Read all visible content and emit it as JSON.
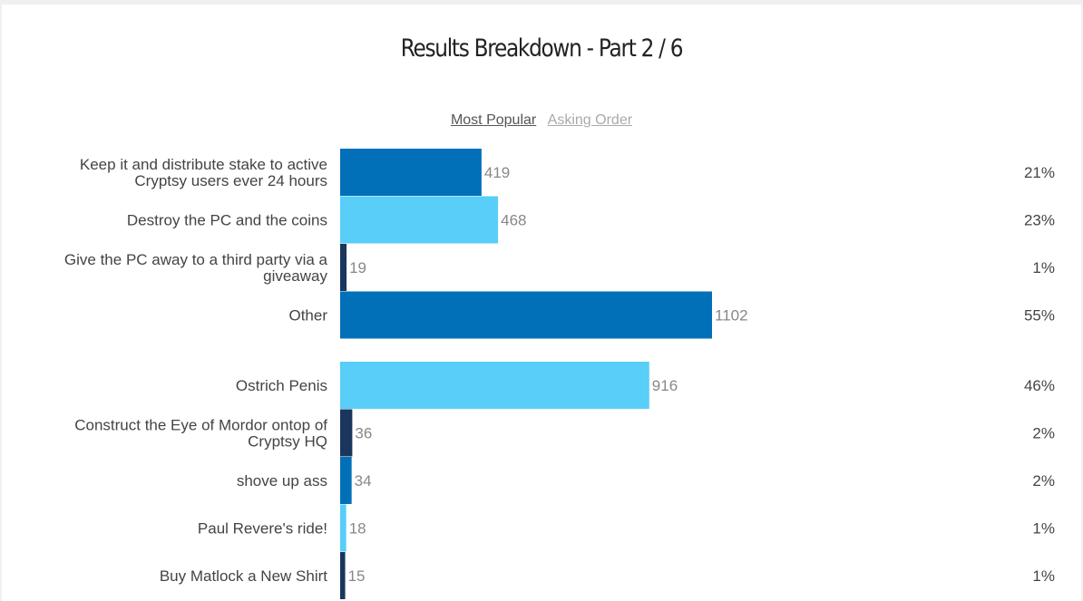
{
  "title": "Results Breakdown - Part 2 / 6",
  "sort": {
    "active": "Most Popular",
    "inactive": "Asking Order"
  },
  "colors": {
    "dark": "#1b365d",
    "mid": "#0270b8",
    "light": "#58cef9"
  },
  "chart_data": {
    "type": "bar",
    "orientation": "horizontal",
    "groups": [
      {
        "rows": [
          {
            "label": [
              "Keep it and distribute stake to active",
              "Cryptsy users ever 24 hours"
            ],
            "value": 419,
            "percent": "21%",
            "color": "mid"
          },
          {
            "label": [
              "Destroy the PC and the coins"
            ],
            "value": 468,
            "percent": "23%",
            "color": "light"
          },
          {
            "label": [
              "Give the PC away to a third party via a",
              "giveaway"
            ],
            "value": 19,
            "percent": "1%",
            "color": "dark"
          },
          {
            "label": [
              "Other"
            ],
            "value": 1102,
            "percent": "55%",
            "color": "mid"
          }
        ]
      },
      {
        "rows": [
          {
            "label": [
              "Ostrich Penis"
            ],
            "value": 916,
            "percent": "46%",
            "color": "light"
          },
          {
            "label": [
              "Construct the Eye of Mordor ontop of",
              "Cryptsy HQ"
            ],
            "value": 36,
            "percent": "2%",
            "color": "dark"
          },
          {
            "label": [
              "shove up ass"
            ],
            "value": 34,
            "percent": "2%",
            "color": "mid"
          },
          {
            "label": [
              "Paul Revere's ride!"
            ],
            "value": 18,
            "percent": "1%",
            "color": "light"
          },
          {
            "label": [
              "Buy Matlock a New Shirt"
            ],
            "value": 15,
            "percent": "1%",
            "color": "dark"
          }
        ]
      }
    ]
  }
}
